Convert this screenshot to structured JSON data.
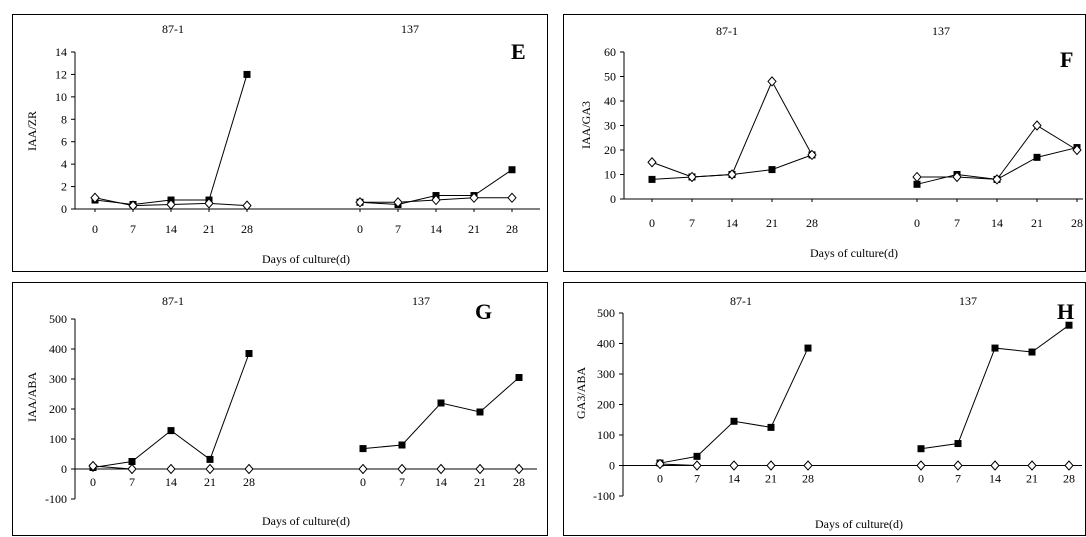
{
  "chart_data": [
    {
      "type": "line",
      "panel_label": "E",
      "groups": [
        "87-1",
        "137"
      ],
      "categories": [
        "0",
        "7",
        "14",
        "21",
        "28"
      ],
      "ylabel": "IAA/ZR",
      "xlabel": "Days of culture(d)",
      "ylim": [
        0,
        14
      ],
      "yticks": [
        0,
        2,
        4,
        6,
        8,
        10,
        12,
        14
      ],
      "series": [
        {
          "marker": "filled-square",
          "values": [
            [
              0.8,
              0.4,
              0.8,
              0.8,
              12.0
            ],
            [
              0.6,
              0.4,
              1.2,
              1.2,
              3.5
            ]
          ]
        },
        {
          "marker": "open-diamond",
          "values": [
            [
              1.0,
              0.3,
              0.4,
              0.5,
              0.3
            ],
            [
              0.6,
              0.6,
              0.8,
              1.0,
              1.0
            ]
          ]
        }
      ]
    },
    {
      "type": "line",
      "panel_label": "F",
      "groups": [
        "87-1",
        "137"
      ],
      "categories": [
        "0",
        "7",
        "14",
        "21",
        "28"
      ],
      "ylabel": "IAA/GA3",
      "xlabel": "Days of culture(d)",
      "ylim": [
        0,
        60
      ],
      "yticks": [
        0,
        10,
        20,
        30,
        40,
        50,
        60
      ],
      "series": [
        {
          "marker": "filled-square",
          "values": [
            [
              8,
              9,
              10,
              12,
              18
            ],
            [
              6,
              10,
              8,
              17,
              21
            ]
          ]
        },
        {
          "marker": "open-diamond",
          "values": [
            [
              15,
              9,
              10,
              48,
              18
            ],
            [
              9,
              9,
              8,
              30,
              20
            ]
          ]
        }
      ]
    },
    {
      "type": "line",
      "panel_label": "G",
      "groups": [
        "87-1",
        "137"
      ],
      "categories": [
        "0",
        "7",
        "14",
        "21",
        "28"
      ],
      "ylabel": "IAA/ABA",
      "xlabel": "Days of culture(d)",
      "ylim": [
        -100,
        500
      ],
      "yticks": [
        -100,
        0,
        100,
        200,
        300,
        400,
        500
      ],
      "series": [
        {
          "marker": "filled-square",
          "values": [
            [
              5,
              25,
              128,
              32,
              385
            ],
            [
              68,
              80,
              220,
              190,
              305
            ]
          ]
        },
        {
          "marker": "open-diamond",
          "values": [
            [
              10,
              0,
              0,
              0,
              0
            ],
            [
              0,
              0,
              0,
              0,
              0
            ]
          ]
        }
      ]
    },
    {
      "type": "line",
      "panel_label": "H",
      "groups": [
        "87-1",
        "137"
      ],
      "categories": [
        "0",
        "7",
        "14",
        "21",
        "28"
      ],
      "ylabel": "GA3/ABA",
      "xlabel": "Days of culture(d)",
      "ylim": [
        -100,
        500
      ],
      "yticks": [
        -100,
        0,
        100,
        200,
        300,
        400,
        500
      ],
      "series": [
        {
          "marker": "filled-square",
          "values": [
            [
              8,
              30,
              145,
              125,
              385
            ],
            [
              55,
              72,
              385,
              372,
              460
            ]
          ]
        },
        {
          "marker": "open-diamond",
          "values": [
            [
              5,
              0,
              0,
              0,
              0
            ],
            [
              0,
              0,
              0,
              0,
              0
            ]
          ]
        }
      ]
    }
  ]
}
